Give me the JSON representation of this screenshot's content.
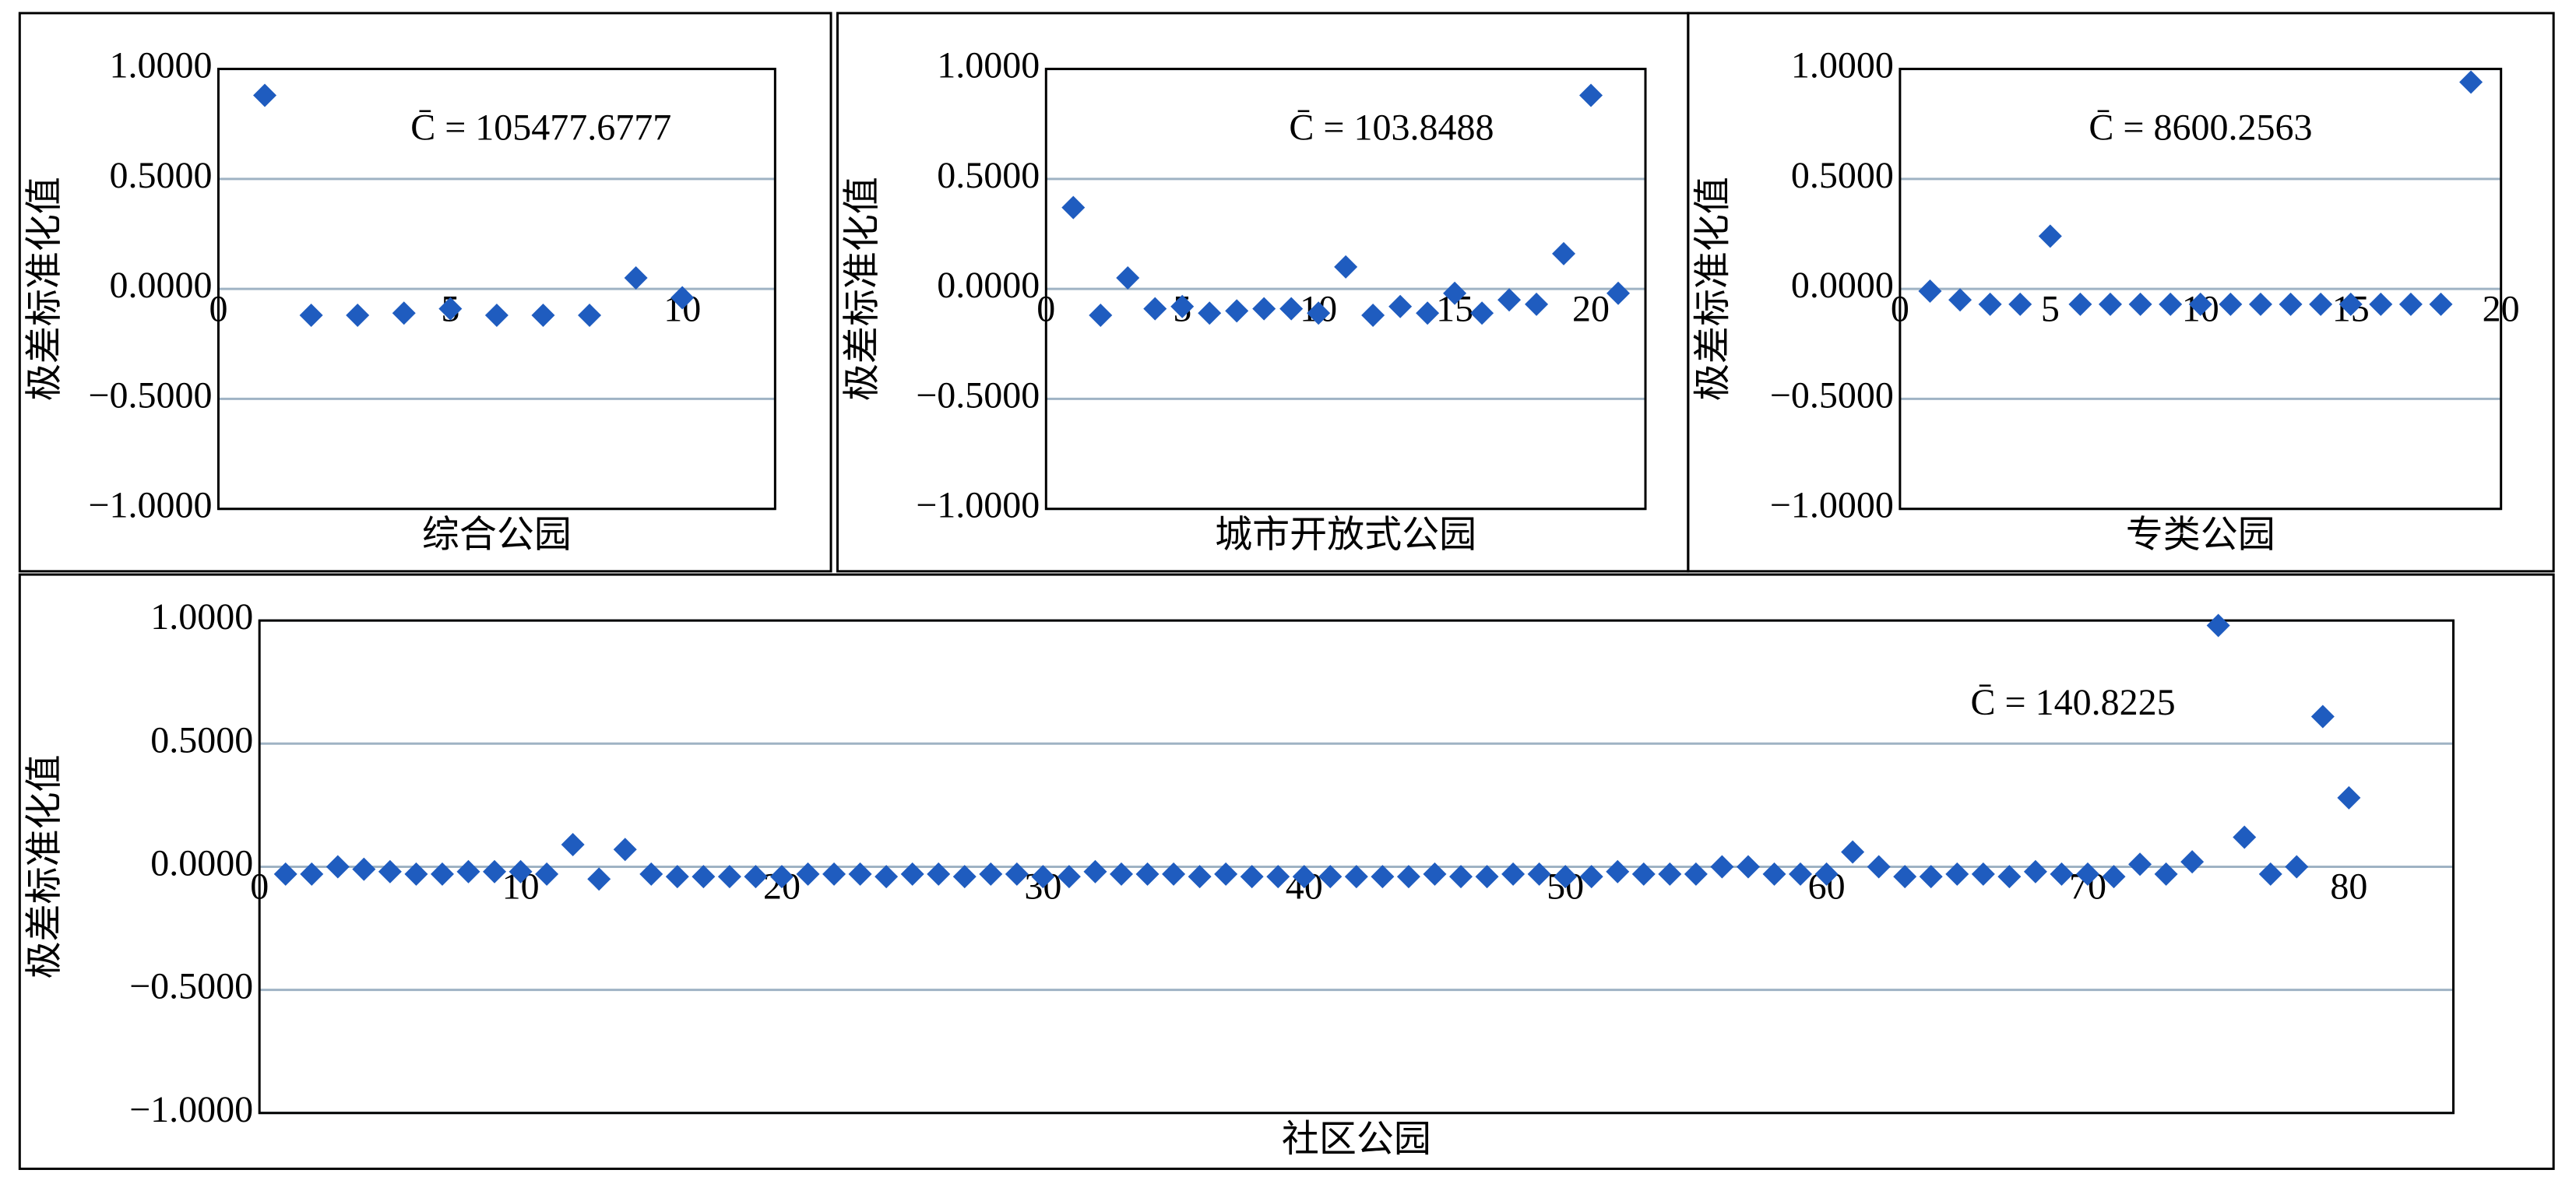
{
  "chart_data": [
    {
      "type": "scatter",
      "xlabel": "综合公园",
      "ylabel": "极差标准化值",
      "annotation": "C̄ = 105477.6777",
      "color": "#1f5cbf",
      "grid": true,
      "x": [
        1,
        2,
        3,
        4,
        5,
        6,
        7,
        8,
        9,
        10
      ],
      "values": [
        0.88,
        -0.12,
        -0.12,
        -0.11,
        -0.09,
        -0.12,
        -0.12,
        -0.12,
        0.05,
        -0.04
      ],
      "xlim": [
        0,
        12
      ],
      "xticks": [
        0,
        5,
        10
      ],
      "ylim": [
        -1,
        1
      ],
      "yticks": [
        {
          "value": 1,
          "label": "1.0000"
        },
        {
          "value": 0.5,
          "label": "0.5000"
        },
        {
          "value": 0,
          "label": "0.0000"
        },
        {
          "value": -0.5,
          "label": "−0.5000"
        },
        {
          "value": -1,
          "label": "−1.0000"
        }
      ]
    },
    {
      "type": "scatter",
      "xlabel": "城市开放式公园",
      "ylabel": "极差标准化值",
      "annotation": "C̄ = 103.8488",
      "color": "#1f5cbf",
      "grid": true,
      "x": [
        1,
        2,
        3,
        4,
        5,
        6,
        7,
        8,
        9,
        10,
        11,
        12,
        13,
        14,
        15,
        16,
        17,
        18,
        19,
        20,
        21
      ],
      "values": [
        0.37,
        -0.12,
        0.05,
        -0.09,
        -0.08,
        -0.11,
        -0.1,
        -0.09,
        -0.09,
        -0.11,
        0.1,
        -0.12,
        -0.08,
        -0.11,
        -0.02,
        -0.11,
        -0.05,
        -0.07,
        0.16,
        0.88,
        -0.02
      ],
      "xlim": [
        0,
        22
      ],
      "xticks": [
        0,
        5,
        10,
        15,
        20
      ],
      "ylim": [
        -1,
        1
      ],
      "yticks": [
        {
          "value": 1,
          "label": "1.0000"
        },
        {
          "value": 0.5,
          "label": "0.5000"
        },
        {
          "value": 0,
          "label": "0.0000"
        },
        {
          "value": -0.5,
          "label": "−0.5000"
        },
        {
          "value": -1,
          "label": "−1.0000"
        }
      ]
    },
    {
      "type": "scatter",
      "xlabel": "专类公园",
      "ylabel": "极差标准化值",
      "annotation": "C̄ = 8600.2563",
      "color": "#1f5cbf",
      "grid": true,
      "x": [
        1,
        2,
        3,
        4,
        5,
        6,
        7,
        8,
        9,
        10,
        11,
        12,
        13,
        14,
        15,
        16,
        17,
        18,
        19
      ],
      "values": [
        -0.01,
        -0.05,
        -0.07,
        -0.07,
        0.24,
        -0.07,
        -0.07,
        -0.07,
        -0.07,
        -0.07,
        -0.07,
        -0.07,
        -0.07,
        -0.07,
        -0.07,
        -0.07,
        -0.07,
        -0.07,
        0.94
      ],
      "xlim": [
        0,
        20
      ],
      "xticks": [
        0,
        5,
        10,
        15,
        20
      ],
      "ylim": [
        -1,
        1
      ],
      "yticks": [
        {
          "value": 1,
          "label": "1.0000"
        },
        {
          "value": 0.5,
          "label": "0.5000"
        },
        {
          "value": 0,
          "label": "0.0000"
        },
        {
          "value": -0.5,
          "label": "−0.5000"
        },
        {
          "value": -1,
          "label": "−1.0000"
        }
      ]
    },
    {
      "type": "scatter",
      "xlabel": "社区公园",
      "ylabel": "极差标准化值",
      "annotation": "C̄ = 140.8225",
      "color": "#1f5cbf",
      "grid": true,
      "x": [
        1,
        2,
        3,
        4,
        5,
        6,
        7,
        8,
        9,
        10,
        11,
        12,
        13,
        14,
        15,
        16,
        17,
        18,
        19,
        20,
        21,
        22,
        23,
        24,
        25,
        26,
        27,
        28,
        29,
        30,
        31,
        32,
        33,
        34,
        35,
        36,
        37,
        38,
        39,
        40,
        41,
        42,
        43,
        44,
        45,
        46,
        47,
        48,
        49,
        50,
        51,
        52,
        53,
        54,
        55,
        56,
        57,
        58,
        59,
        60,
        61,
        62,
        63,
        64,
        65,
        66,
        67,
        68,
        69,
        70,
        71,
        72,
        73,
        74,
        75,
        76,
        77,
        78,
        79,
        80
      ],
      "values": [
        -0.03,
        -0.03,
        0,
        -0.01,
        -0.02,
        -0.03,
        -0.03,
        -0.02,
        -0.02,
        -0.02,
        -0.03,
        0.09,
        -0.05,
        0.07,
        -0.03,
        -0.04,
        -0.04,
        -0.04,
        -0.04,
        -0.04,
        -0.03,
        -0.03,
        -0.03,
        -0.04,
        -0.03,
        -0.03,
        -0.04,
        -0.03,
        -0.03,
        -0.04,
        -0.04,
        -0.02,
        -0.03,
        -0.03,
        -0.03,
        -0.04,
        -0.03,
        -0.04,
        -0.04,
        -0.04,
        -0.04,
        -0.04,
        -0.04,
        -0.04,
        -0.03,
        -0.04,
        -0.04,
        -0.03,
        -0.03,
        -0.04,
        -0.04,
        -0.02,
        -0.03,
        -0.03,
        -0.03,
        0,
        0,
        -0.03,
        -0.03,
        -0.03,
        0.06,
        0,
        -0.04,
        -0.04,
        -0.03,
        -0.03,
        -0.04,
        -0.02,
        -0.03,
        -0.03,
        -0.04,
        0.01,
        -0.03,
        0.02,
        0.98,
        0.12,
        -0.03,
        0,
        0.61,
        0.28
      ],
      "xlim": [
        0,
        84
      ],
      "xticks": [
        0,
        10,
        20,
        30,
        40,
        50,
        60,
        70,
        80
      ],
      "ylim": [
        -1,
        1
      ],
      "yticks": [
        {
          "value": 1,
          "label": "1.0000"
        },
        {
          "value": 0.5,
          "label": "0.5000"
        },
        {
          "value": 0,
          "label": "0.0000"
        },
        {
          "value": -0.5,
          "label": "−0.5000"
        },
        {
          "value": -1,
          "label": "−1.0000"
        }
      ]
    }
  ]
}
